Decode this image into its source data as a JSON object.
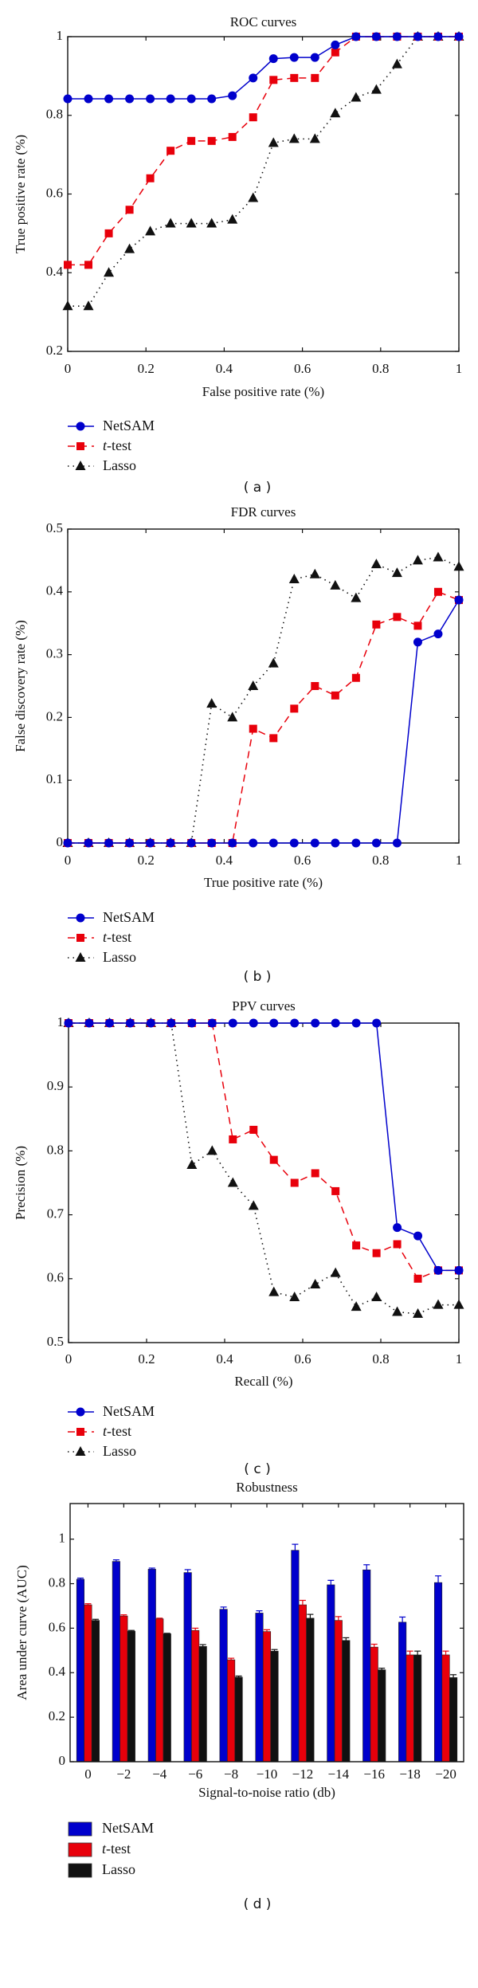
{
  "colors": {
    "NetSAM": "#0000cc",
    "t-test": "#e8000b",
    "Lasso": "#111111"
  },
  "chart_data": [
    {
      "type": "line",
      "caption": "( a )",
      "title": "ROC curves",
      "xlabel": "False positive rate (%)",
      "ylabel": "True positive rate (%)",
      "xlim": [
        0,
        1
      ],
      "ylim": [
        0.2,
        1
      ],
      "xticks": [
        "0",
        "0.2",
        "0.4",
        "0.6",
        "0.8",
        "1"
      ],
      "yticks": [
        "0.2",
        "0.4",
        "0.6",
        "0.8",
        "1"
      ],
      "legend": "bottom-left-outside",
      "x": [
        0,
        0.053,
        0.105,
        0.158,
        0.211,
        0.263,
        0.316,
        0.368,
        0.421,
        0.474,
        0.526,
        0.579,
        0.632,
        0.684,
        0.737,
        0.789,
        0.842,
        0.895,
        0.947,
        1
      ],
      "series": [
        {
          "name": "NetSAM",
          "style": "solid-circle",
          "values": [
            0.842,
            0.842,
            0.842,
            0.842,
            0.842,
            0.842,
            0.842,
            0.842,
            0.85,
            0.895,
            0.944,
            0.947,
            0.947,
            0.979,
            1,
            1,
            1,
            1,
            1,
            1
          ]
        },
        {
          "name": "t-test",
          "style": "dashed-square",
          "values": [
            0.42,
            0.42,
            0.5,
            0.56,
            0.64,
            0.71,
            0.735,
            0.735,
            0.745,
            0.795,
            0.89,
            0.895,
            0.895,
            0.96,
            1,
            1,
            1,
            1,
            1,
            1
          ]
        },
        {
          "name": "Lasso",
          "style": "dotted-triangle",
          "values": [
            0.315,
            0.315,
            0.4,
            0.46,
            0.505,
            0.525,
            0.525,
            0.525,
            0.535,
            0.59,
            0.73,
            0.74,
            0.74,
            0.805,
            0.845,
            0.865,
            0.93,
            1,
            1,
            1
          ]
        }
      ]
    },
    {
      "type": "line",
      "caption": "( b )",
      "title": "FDR curves",
      "xlabel": "True positive rate (%)",
      "ylabel": "False discovery rate (%)",
      "xlim": [
        0,
        1
      ],
      "ylim": [
        0,
        0.5
      ],
      "xticks": [
        "0",
        "0.2",
        "0.4",
        "0.6",
        "0.8",
        "1"
      ],
      "yticks": [
        "0",
        "0.1",
        "0.2",
        "0.3",
        "0.4",
        "0.5"
      ],
      "legend": "bottom-left-outside",
      "x": [
        0,
        0.053,
        0.105,
        0.158,
        0.211,
        0.263,
        0.316,
        0.368,
        0.421,
        0.474,
        0.526,
        0.579,
        0.632,
        0.684,
        0.737,
        0.789,
        0.842,
        0.895,
        0.947,
        1
      ],
      "series": [
        {
          "name": "NetSAM",
          "style": "solid-circle",
          "values": [
            0,
            0,
            0,
            0,
            0,
            0,
            0,
            0,
            0,
            0,
            0,
            0,
            0,
            0,
            0,
            0,
            0,
            0.32,
            0.333,
            0.387
          ]
        },
        {
          "name": "t-test",
          "style": "dashed-square",
          "values": [
            0,
            0,
            0,
            0,
            0,
            0,
            0,
            0,
            0,
            0.182,
            0.167,
            0.214,
            0.25,
            0.235,
            0.263,
            0.348,
            0.36,
            0.346,
            0.4,
            0.387
          ]
        },
        {
          "name": "Lasso",
          "style": "dotted-triangle",
          "values": [
            0,
            0,
            0,
            0,
            0,
            0,
            0,
            0.222,
            0.2,
            0.25,
            0.286,
            0.42,
            0.428,
            0.41,
            0.39,
            0.444,
            0.43,
            0.45,
            0.455,
            0.44
          ]
        }
      ]
    },
    {
      "type": "line",
      "caption": "( c )",
      "title": "PPV curves",
      "xlabel": "Recall (%)",
      "ylabel": "Precision (%)",
      "xlim": [
        0,
        1
      ],
      "ylim": [
        0.5,
        1
      ],
      "xticks": [
        "0",
        "0.2",
        "0.4",
        "0.6",
        "0.8",
        "1"
      ],
      "yticks": [
        "0.5",
        "0.6",
        "0.7",
        "0.8",
        "0.9",
        "1"
      ],
      "legend": "bottom-left-outside",
      "x": [
        0,
        0.053,
        0.105,
        0.158,
        0.211,
        0.263,
        0.316,
        0.368,
        0.421,
        0.474,
        0.526,
        0.579,
        0.632,
        0.684,
        0.737,
        0.789,
        0.842,
        0.895,
        0.947,
        1
      ],
      "series": [
        {
          "name": "NetSAM",
          "style": "solid-circle",
          "values": [
            1,
            1,
            1,
            1,
            1,
            1,
            1,
            1,
            1,
            1,
            1,
            1,
            1,
            1,
            1,
            1,
            0.68,
            0.667,
            0.613,
            0.613
          ]
        },
        {
          "name": "t-test",
          "style": "dashed-square",
          "values": [
            1,
            1,
            1,
            1,
            1,
            1,
            1,
            1,
            0.818,
            0.833,
            0.786,
            0.75,
            0.765,
            0.737,
            0.652,
            0.64,
            0.654,
            0.6,
            0.613,
            0.613
          ]
        },
        {
          "name": "Lasso",
          "style": "dotted-triangle",
          "values": [
            1,
            1,
            1,
            1,
            1,
            1,
            0.778,
            0.8,
            0.75,
            0.714,
            0.579,
            0.571,
            0.591,
            0.609,
            0.556,
            0.571,
            0.548,
            0.545,
            0.559,
            0.559
          ]
        }
      ]
    },
    {
      "type": "bar",
      "caption": "( d )",
      "title": "Robustness",
      "xlabel": "Signal-to-noise ratio (db)",
      "ylabel": "Area under curve (AUC)",
      "ylim": [
        0,
        1.16
      ],
      "yticks": [
        "0",
        "0.2",
        "0.4",
        "0.6",
        "0.8",
        "1"
      ],
      "legend": "bottom-left-outside",
      "categories": [
        "0",
        "−2",
        "−4",
        "−6",
        "−8",
        "−10",
        "−12",
        "−14",
        "−16",
        "−18",
        "−20"
      ],
      "series": [
        {
          "name": "NetSAM",
          "values": [
            0.82,
            0.9,
            0.865,
            0.85,
            0.685,
            0.668,
            0.95,
            0.795,
            0.862,
            0.627,
            0.805
          ],
          "errors": [
            0.005,
            0.007,
            0.005,
            0.013,
            0.01,
            0.01,
            0.027,
            0.02,
            0.023,
            0.023,
            0.03
          ]
        },
        {
          "name": "t-test",
          "values": [
            0.705,
            0.655,
            0.642,
            0.59,
            0.458,
            0.585,
            0.705,
            0.635,
            0.515,
            0.48,
            0.48
          ],
          "errors": [
            0.005,
            0.005,
            0.003,
            0.01,
            0.007,
            0.008,
            0.02,
            0.017,
            0.013,
            0.017,
            0.017
          ]
        },
        {
          "name": "Lasso",
          "values": [
            0.635,
            0.587,
            0.575,
            0.518,
            0.38,
            0.497,
            0.645,
            0.545,
            0.413,
            0.48,
            0.378
          ],
          "errors": [
            0.005,
            0.003,
            0.002,
            0.008,
            0.005,
            0.007,
            0.017,
            0.012,
            0.007,
            0.017,
            0.013
          ]
        }
      ]
    }
  ]
}
